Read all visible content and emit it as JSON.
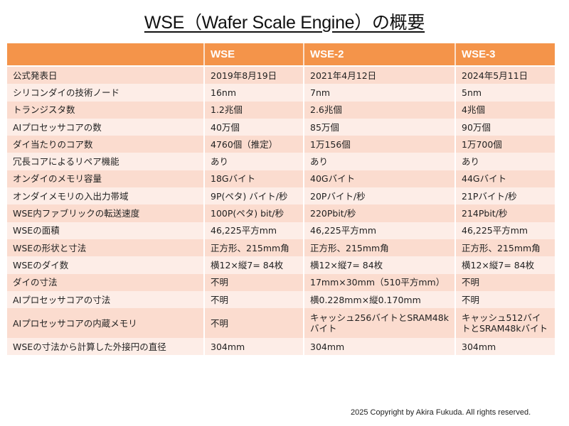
{
  "title": "WSE（Wafer Scale Engine）の概要",
  "table": {
    "headers": [
      "",
      "WSE",
      "WSE-2",
      "WSE-3"
    ],
    "rows": [
      [
        "公式発表日",
        "2019年8月19日",
        "2021年4月12日",
        "2024年5月11日"
      ],
      [
        "シリコンダイの技術ノード",
        "16nm",
        "7nm",
        "5nm"
      ],
      [
        "トランジスタ数",
        "1.2兆個",
        "2.6兆個",
        "4兆個"
      ],
      [
        "AIプロセッサコアの数",
        "40万個",
        "85万個",
        "90万個"
      ],
      [
        "ダイ当たりのコア数",
        "4760個（推定）",
        "1万156個",
        "1万700個"
      ],
      [
        "冗長コアによるリペア機能",
        "あり",
        "あり",
        "あり"
      ],
      [
        "オンダイのメモリ容量",
        "18Gバイト",
        "40Gバイト",
        "44Gバイト"
      ],
      [
        "オンダイメモリの入出力帯域",
        "9P(ペタ) バイト/秒",
        "20Pバイト/秒",
        "21Pバイト/秒"
      ],
      [
        "WSE内ファブリックの転送速度",
        "100P(ペタ) bit/秒",
        "220Pbit/秒",
        "214Pbit/秒"
      ],
      [
        "WSEの面積",
        "46,225平方mm",
        "46,225平方mm",
        "46,225平方mm"
      ],
      [
        "WSEの形状と寸法",
        "正方形、215mm角",
        "正方形、215mm角",
        "正方形、215mm角"
      ],
      [
        "WSEのダイ数",
        "横12×縦7= 84枚",
        "横12×縦7= 84枚",
        "横12×縦7= 84枚"
      ],
      [
        "ダイの寸法",
        "不明",
        "17mm×30mm（510平方mm）",
        "不明"
      ],
      [
        "AIプロセッサコアの寸法",
        "不明",
        "横0.228mm×縦0.170mm",
        "不明"
      ],
      [
        "AIプロセッサコアの内蔵メモリ",
        "不明",
        "キャッシュ256バイトとSRAM48kバイト",
        "キャッシュ512バイトとSRAM48kバイト"
      ],
      [
        "WSEの寸法から計算した外接円の直径",
        "304mm",
        "304mm",
        "304mm"
      ]
    ]
  },
  "colors": {
    "header": "#F4944A",
    "row_odd": "#FBDCCF",
    "row_even": "#FDEDE7"
  },
  "copyright": "2025 Copyright by Akira Fukuda. All rights reserved."
}
